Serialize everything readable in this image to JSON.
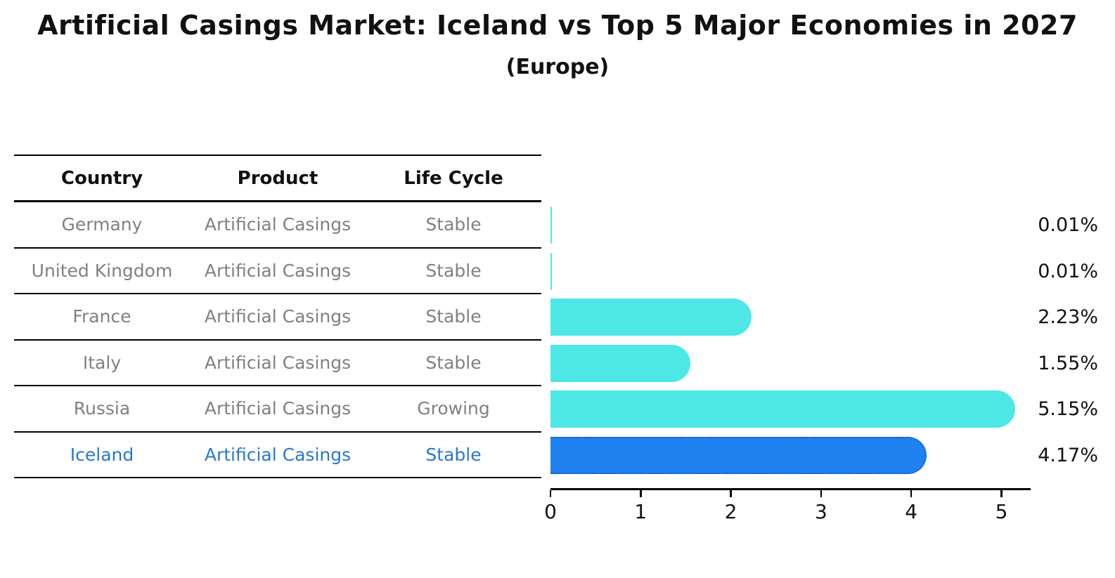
{
  "title": "Artificial Casings Market: Iceland vs Top 5 Major Economies in 2027",
  "subtitle": "(Europe)",
  "table": {
    "headers": [
      "Country",
      "Product",
      "Life Cycle"
    ],
    "rows": [
      {
        "country": "Germany",
        "product": "Artificial Casings",
        "life_cycle": "Stable",
        "highlight": false
      },
      {
        "country": "United Kingdom",
        "product": "Artificial Casings",
        "life_cycle": "Stable",
        "highlight": false
      },
      {
        "country": "France",
        "product": "Artificial Casings",
        "life_cycle": "Stable",
        "highlight": false
      },
      {
        "country": "Italy",
        "product": "Artificial Casings",
        "life_cycle": "Stable",
        "highlight": false
      },
      {
        "country": "Russia",
        "product": "Artificial Casings",
        "life_cycle": "Growing",
        "highlight": false
      },
      {
        "country": "Iceland",
        "product": "Artificial Casings",
        "life_cycle": "Stable",
        "highlight": true
      }
    ]
  },
  "chart_data": {
    "type": "bar",
    "orientation": "horizontal",
    "title": "Artificial Casings Market: Iceland vs Top 5 Major Economies in 2027",
    "subtitle": "(Europe)",
    "categories": [
      "Germany",
      "United Kingdom",
      "France",
      "Italy",
      "Russia",
      "Iceland"
    ],
    "values": [
      0.01,
      0.01,
      2.23,
      1.55,
      5.15,
      4.17
    ],
    "value_labels": [
      "0.01%",
      "0.01%",
      "2.23%",
      "1.55%",
      "5.15%",
      "4.17%"
    ],
    "highlight_category": "Iceland",
    "xlim": [
      0,
      5.3
    ],
    "xticks": [
      0,
      1,
      2,
      3,
      4,
      5
    ],
    "grid": false,
    "legend": false
  },
  "colors": {
    "bar_default": "#4DE8E6",
    "bar_highlight": "#1F82F0",
    "bar_highlight_border": "#135CB8",
    "muted_text": "#808080",
    "highlight_text": "#2878CD",
    "axis_text": "#111111"
  }
}
